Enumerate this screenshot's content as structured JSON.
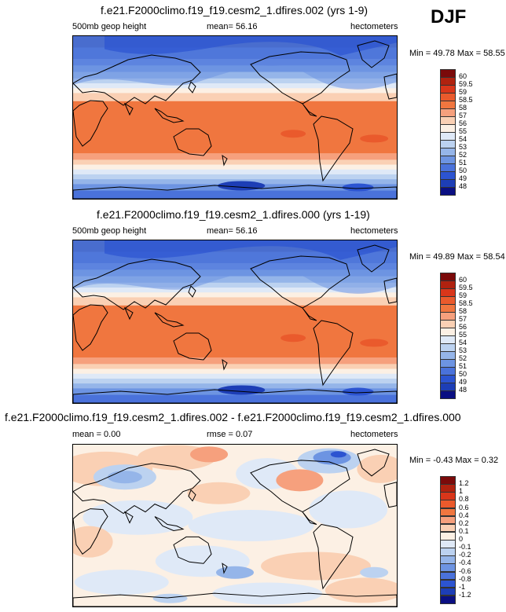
{
  "season": "DJF",
  "panels": [
    {
      "title": "f.e21.F2000climo.f19_f19.cesm2_1.dfires.002 (yrs 1-9)",
      "left_label": "500mb geop height",
      "center_label": "mean=  56.16",
      "right_label": "hectometers",
      "minmax": "Min = 49.78 Max = 58.55",
      "colorbar": {
        "labels": [
          "60",
          "59.5",
          "59",
          "58.5",
          "58",
          "57",
          "56",
          "55",
          "54",
          "53",
          "52",
          "51",
          "50",
          "49",
          "48"
        ],
        "colors": [
          "#7b0a0a",
          "#b0220f",
          "#d9361a",
          "#ea5a2c",
          "#f0763f",
          "#f6a07d",
          "#fad0b4",
          "#fcf0e4",
          "#dfe9f7",
          "#bcd2f0",
          "#95b5e9",
          "#6d94e2",
          "#4a72db",
          "#2c54d1",
          "#1d3eb6",
          "#0a0f82"
        ]
      },
      "map_kind": "height"
    },
    {
      "title": "f.e21.F2000climo.f19_f19.cesm2_1.dfires.000 (yrs 1-19)",
      "left_label": "500mb geop height",
      "center_label": "mean=  56.16",
      "right_label": "hectometers",
      "minmax": "Min = 49.89 Max = 58.54",
      "colorbar": {
        "labels": [
          "60",
          "59.5",
          "59",
          "58.5",
          "58",
          "57",
          "56",
          "55",
          "54",
          "53",
          "52",
          "51",
          "50",
          "49",
          "48"
        ],
        "colors": [
          "#7b0a0a",
          "#b0220f",
          "#d9361a",
          "#ea5a2c",
          "#f0763f",
          "#f6a07d",
          "#fad0b4",
          "#fcf0e4",
          "#dfe9f7",
          "#bcd2f0",
          "#95b5e9",
          "#6d94e2",
          "#4a72db",
          "#2c54d1",
          "#1d3eb6",
          "#0a0f82"
        ]
      },
      "map_kind": "height"
    },
    {
      "title": "f.e21.F2000climo.f19_f19.cesm2_1.dfires.002 - f.e21.F2000climo.f19_f19.cesm2_1.dfires.000",
      "left_label": "mean =  0.00",
      "center_label": "rmse =  0.07",
      "right_label": "hectometers",
      "minmax": "Min = -0.43 Max =  0.32",
      "colorbar": {
        "labels": [
          "1.2",
          "1",
          "0.8",
          "0.6",
          "0.4",
          "0.2",
          "0.1",
          "0",
          "-0.1",
          "-0.2",
          "-0.4",
          "-0.6",
          "-0.8",
          "-1",
          "-1.2"
        ],
        "colors": [
          "#7b0a0a",
          "#b0220f",
          "#d9361a",
          "#ea5a2c",
          "#f0763f",
          "#f6a07d",
          "#fad0b4",
          "#fcf0e4",
          "#dfe9f7",
          "#bcd2f0",
          "#95b5e9",
          "#6d94e2",
          "#4a72db",
          "#2c54d1",
          "#1d3eb6",
          "#0a0f82"
        ]
      },
      "map_kind": "diff"
    }
  ],
  "chart_data": [
    {
      "type": "heatmap",
      "title": "f.e21.F2000climo.f19_f19.cesm2_1.dfires.002 (yrs 1-9)",
      "variable": "500mb geop height",
      "units": "hectometers",
      "mean": 56.16,
      "min": 49.78,
      "max": 58.55,
      "levels": [
        48,
        49,
        50,
        51,
        52,
        53,
        54,
        55,
        56,
        57,
        58,
        58.5,
        59,
        59.5,
        60
      ]
    },
    {
      "type": "heatmap",
      "title": "f.e21.F2000climo.f19_f19.cesm2_1.dfires.000 (yrs 1-19)",
      "variable": "500mb geop height",
      "units": "hectometers",
      "mean": 56.16,
      "min": 49.89,
      "max": 58.54,
      "levels": [
        48,
        49,
        50,
        51,
        52,
        53,
        54,
        55,
        56,
        57,
        58,
        58.5,
        59,
        59.5,
        60
      ]
    },
    {
      "type": "heatmap",
      "title": "f.e21.F2000climo.f19_f19.cesm2_1.dfires.002 - f.e21.F2000climo.f19_f19.cesm2_1.dfires.000",
      "units": "hectometers",
      "mean": 0.0,
      "rmse": 0.07,
      "min": -0.43,
      "max": 0.32,
      "levels": [
        -1.2,
        -1,
        -0.8,
        -0.6,
        -0.4,
        -0.2,
        -0.1,
        0,
        0.1,
        0.2,
        0.4,
        0.6,
        0.8,
        1,
        1.2
      ]
    }
  ]
}
